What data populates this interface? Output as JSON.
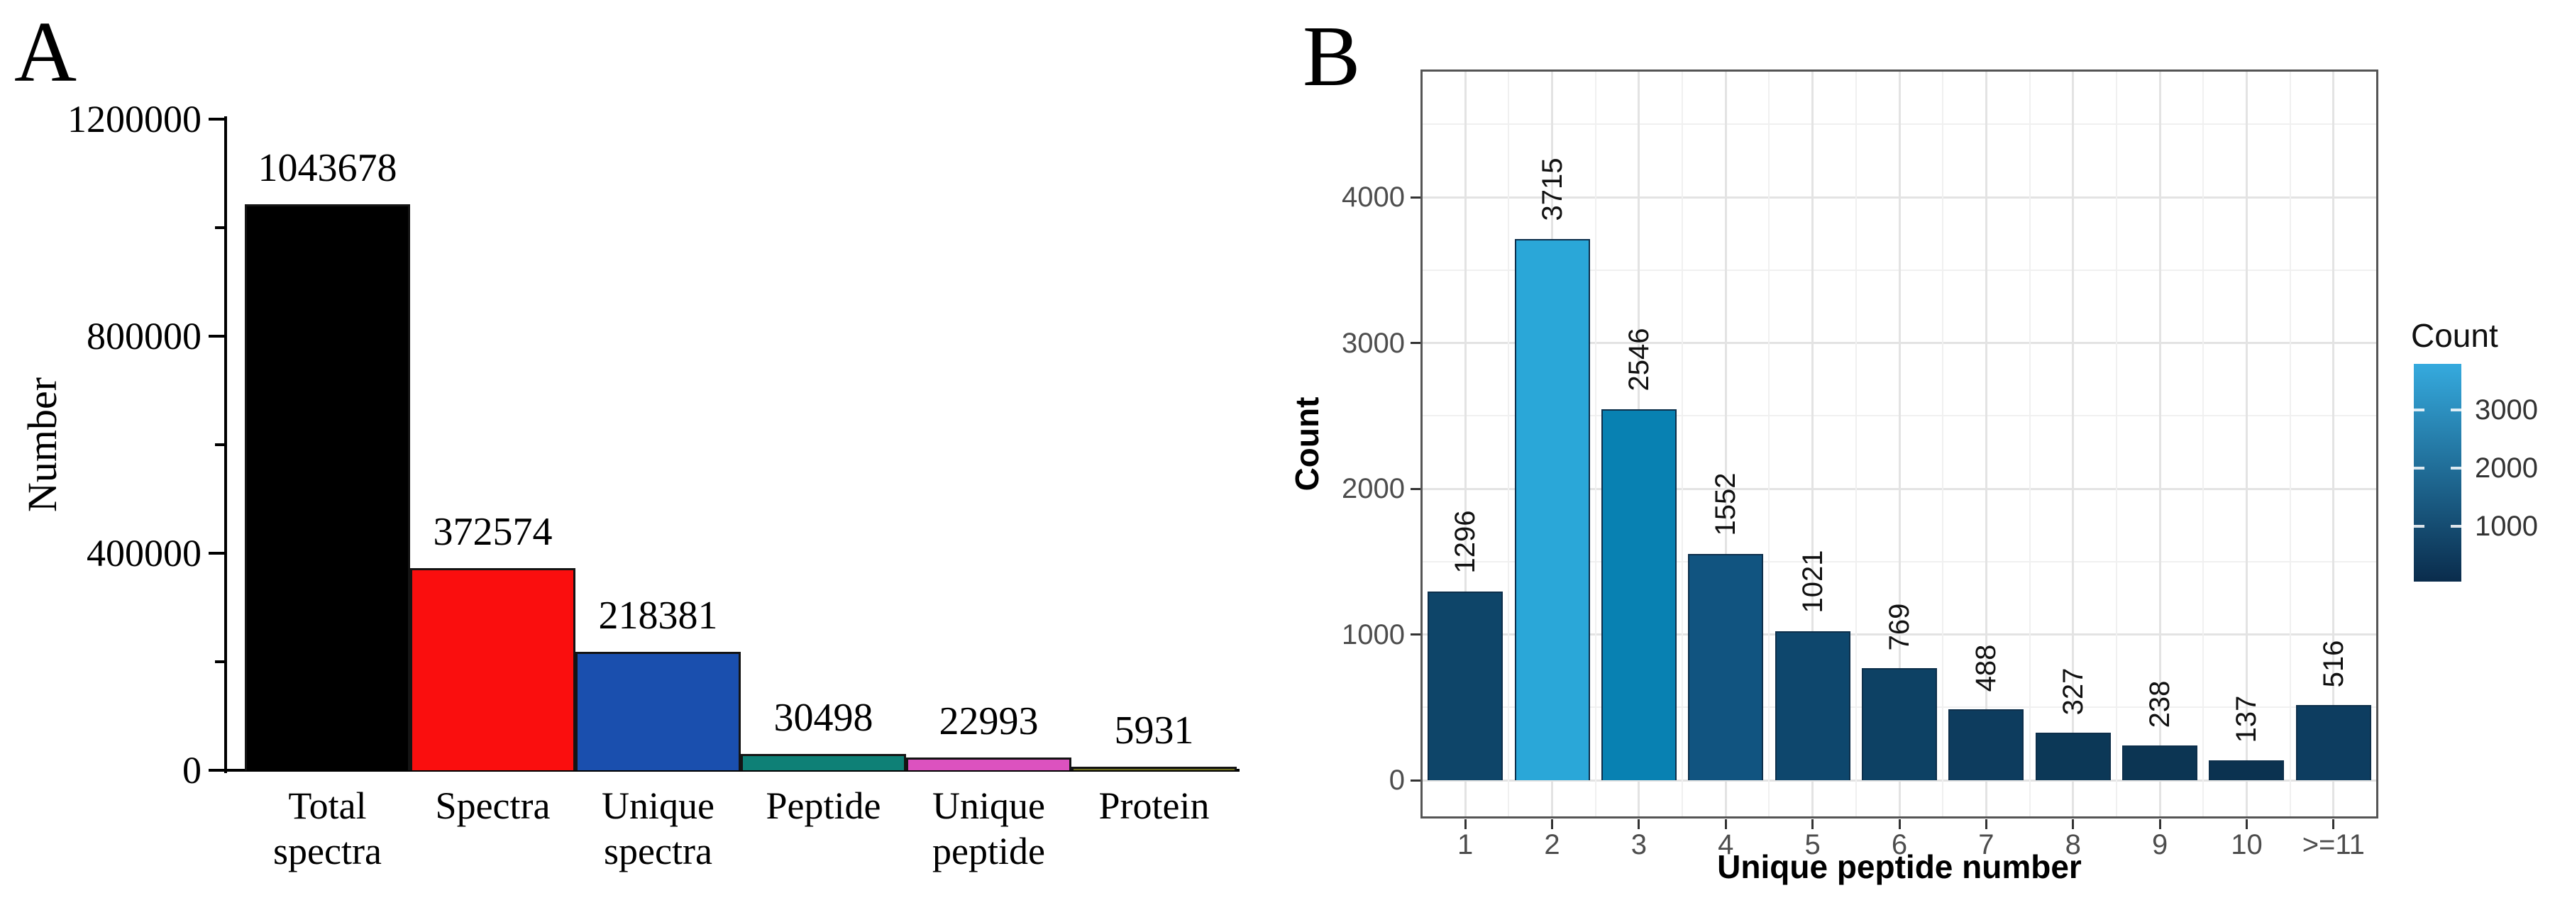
{
  "figure": {
    "panel_a_label": "A",
    "panel_b_label": "B",
    "background": "#ffffff"
  },
  "chart_data": [
    {
      "id": "panel-a",
      "type": "bar",
      "title": "",
      "xlabel": "",
      "ylabel": "Number",
      "categories": [
        "Total spectra",
        "Spectra",
        "Unique spectra",
        "Peptide",
        "Unique peptide",
        "Protein"
      ],
      "values": [
        1043678,
        372574,
        218381,
        30498,
        22993,
        5931
      ],
      "bar_colors": [
        "#000000",
        "#fa0e0e",
        "#1a4fae",
        "#0e8076",
        "#dc52bf",
        "#6e6e1f"
      ],
      "bar_border_color": "#141414",
      "ylim": [
        0,
        1200000
      ],
      "yticks": [
        0,
        400000,
        800000,
        1200000
      ],
      "yticks_minor": [
        200000,
        600000,
        1000000
      ],
      "grid": false,
      "value_labels_shown": true,
      "axis_color": "#000000"
    },
    {
      "id": "panel-b",
      "type": "bar",
      "title": "",
      "xlabel": "Unique peptide number",
      "ylabel": "Count",
      "categories": [
        "1",
        "2",
        "3",
        "4",
        "5",
        "6",
        "7",
        "8",
        "9",
        "10",
        ">=11"
      ],
      "values": [
        1296,
        3715,
        2546,
        1552,
        1021,
        769,
        488,
        327,
        238,
        137,
        516
      ],
      "bar_colors": [
        "#0e4569",
        "#2aa7d8",
        "#0881b2",
        "#115480",
        "#0e476d",
        "#0d4164",
        "#0d3c5e",
        "#0c3857",
        "#0c3553",
        "#0b3250",
        "#0d3d60"
      ],
      "bar_border_color": "#0d2f4b",
      "ylim": [
        0,
        4878
      ],
      "yticks": [
        0,
        1000,
        2000,
        3000,
        4000
      ],
      "yticks_minor": [
        500,
        1500,
        2500,
        3500,
        4500
      ],
      "grid": true,
      "value_labels_shown": true,
      "value_labels_rotated": true,
      "gridline_color_major": "#e3e3e3",
      "gridline_color_minor": "#f0f0f0",
      "panel_border_color": "#555555",
      "tick_label_color": "#4d4d4d",
      "legend": {
        "title": "Count",
        "position": "right",
        "ticks": [
          1000,
          2000,
          3000
        ],
        "gradient_low": "#0a2c4c",
        "gradient_high": "#35aade",
        "range": [
          137,
          3715
        ]
      }
    }
  ]
}
